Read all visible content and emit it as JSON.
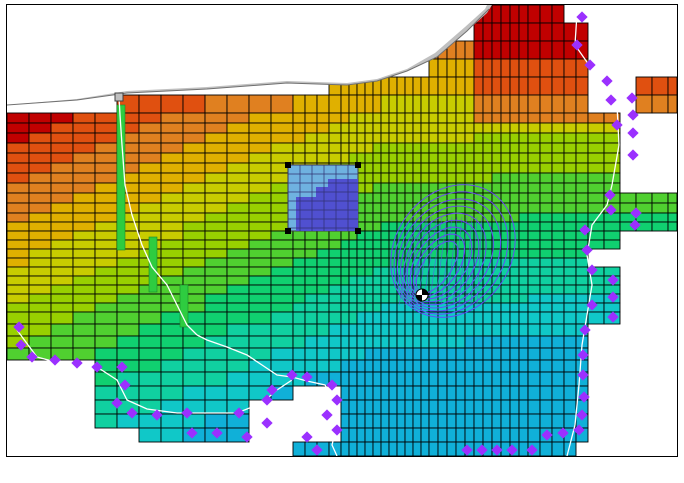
{
  "window": {
    "background": "#ffffff",
    "border_color": "#000000"
  },
  "model_view": {
    "icons": {
      "boundary_node": "diamond-marker-icon",
      "selection_handle": "square-handle-icon",
      "well_node": "well-icon"
    },
    "colors": {
      "grid_line": "#000000",
      "land_fill": "#c0c0c0",
      "boundary_node": "#9b30ff",
      "river_line": "#ffffff",
      "selection_cells": "#5050d0",
      "selection_fill": "#6fb2e0",
      "plume_lines": "#6a40ff",
      "drain_cells": "#2ecc40"
    },
    "color_scale": [
      "#c00000",
      "#e05010",
      "#e08020",
      "#e0b000",
      "#c8cc00",
      "#98d000",
      "#50d030",
      "#10d070",
      "#10d0a0",
      "#10c8c8",
      "#10b0d8"
    ]
  }
}
